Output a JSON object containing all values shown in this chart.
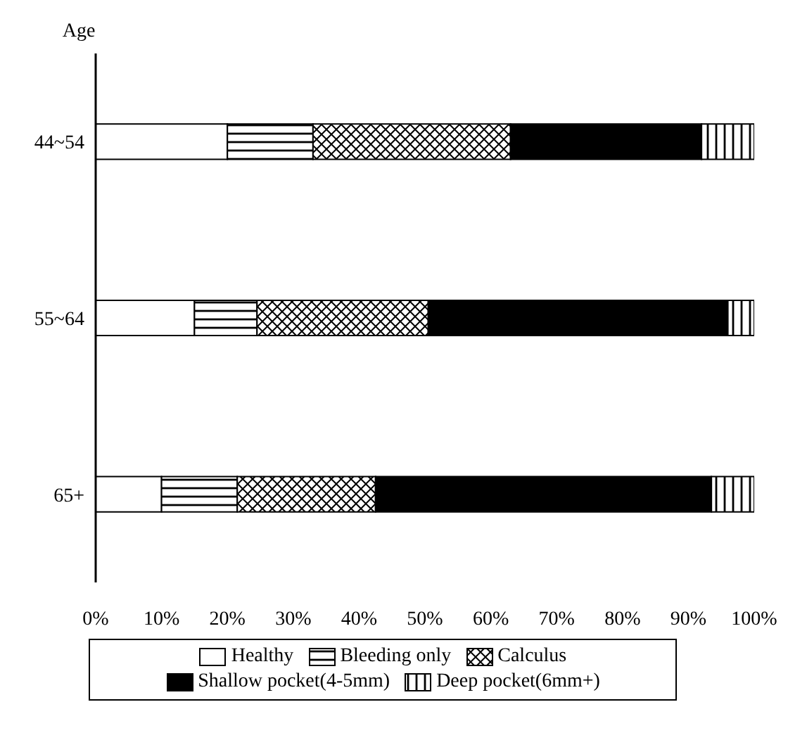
{
  "chart_data": {
    "type": "bar",
    "orientation": "horizontal",
    "stacked": true,
    "ylabel": "Age",
    "categories": [
      "44~54",
      "55~64",
      "65+"
    ],
    "series": [
      {
        "name": "Healthy",
        "color": "#ffffff",
        "values": [
          20,
          15,
          10
        ]
      },
      {
        "name": "Bleeding only",
        "color": "#000000",
        "values": [
          13,
          9.5,
          11.5
        ]
      },
      {
        "name": "Calculus",
        "color": "#000000",
        "values": [
          30,
          26,
          21
        ]
      },
      {
        "name": "Shallow pocket(4-5mm)",
        "color": "#000000",
        "values": [
          29,
          45.5,
          51
        ]
      },
      {
        "name": "Deep pocket(6mm+)",
        "color": "#000000",
        "values": [
          8,
          4,
          6.5
        ]
      }
    ],
    "xlim": [
      0,
      100
    ],
    "xticks": [
      {
        "value": 0,
        "label": "0%"
      },
      {
        "value": 10,
        "label": "10%"
      },
      {
        "value": 20,
        "label": "20%"
      },
      {
        "value": 30,
        "label": "30%"
      },
      {
        "value": 40,
        "label": "40%"
      },
      {
        "value": 50,
        "label": "50%"
      },
      {
        "value": 60,
        "label": "60%"
      },
      {
        "value": 70,
        "label": "70%"
      },
      {
        "value": 80,
        "label": "80%"
      },
      {
        "value": 90,
        "label": "90%"
      },
      {
        "value": 100,
        "label": "100%"
      }
    ],
    "legend": "bottom",
    "grid": false
  }
}
